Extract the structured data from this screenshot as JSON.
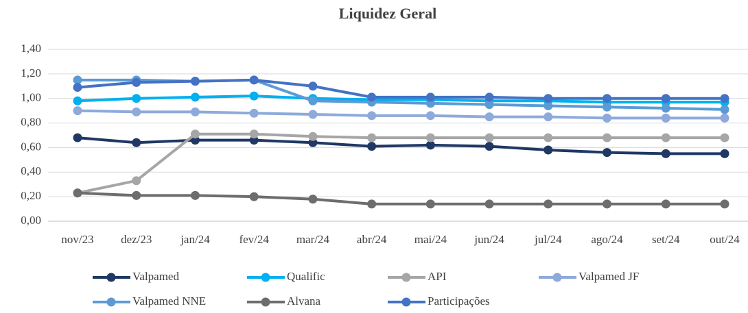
{
  "chart_data": {
    "type": "line",
    "title": "Liquidez Geral",
    "categories": [
      "nov/23",
      "dez/23",
      "jan/24",
      "fev/24",
      "mar/24",
      "abr/24",
      "mai/24",
      "jun/24",
      "jul/24",
      "ago/24",
      "set/24",
      "out/24"
    ],
    "series": [
      {
        "name": "Valpamed",
        "color": "#1f3864",
        "values": [
          0.68,
          0.64,
          0.66,
          0.66,
          0.64,
          0.61,
          0.62,
          0.61,
          0.58,
          0.56,
          0.55,
          0.55
        ]
      },
      {
        "name": "Qualific",
        "color": "#00b0f0",
        "values": [
          0.98,
          1.0,
          1.01,
          1.02,
          1.0,
          0.99,
          0.99,
          0.98,
          0.98,
          0.97,
          0.97,
          0.97
        ]
      },
      {
        "name": "API",
        "color": "#a6a6a6",
        "values": [
          0.23,
          0.33,
          0.71,
          0.71,
          0.69,
          0.68,
          0.68,
          0.68,
          0.68,
          0.68,
          0.68,
          0.68
        ]
      },
      {
        "name": "Valpamed JF",
        "color": "#8eaadb",
        "values": [
          0.9,
          0.89,
          0.89,
          0.88,
          0.87,
          0.86,
          0.86,
          0.85,
          0.85,
          0.84,
          0.84,
          0.84
        ]
      },
      {
        "name": "Valpamed NNE",
        "color": "#5b9bd5",
        "values": [
          1.15,
          1.15,
          1.14,
          1.15,
          0.98,
          0.97,
          0.96,
          0.95,
          0.94,
          0.93,
          0.92,
          0.91
        ]
      },
      {
        "name": "Alvana",
        "color": "#6d6d6d",
        "values": [
          0.23,
          0.21,
          0.21,
          0.2,
          0.18,
          0.14,
          0.14,
          0.14,
          0.14,
          0.14,
          0.14,
          0.14
        ]
      },
      {
        "name": "Participações",
        "color": "#4472c4",
        "values": [
          1.09,
          1.13,
          1.14,
          1.15,
          1.1,
          1.01,
          1.01,
          1.01,
          1.0,
          1.0,
          1.0,
          1.0
        ]
      }
    ],
    "ylim": [
      0,
      1.4
    ],
    "yticks": [
      {
        "value": 0,
        "label": "0,00"
      },
      {
        "value": 0.2,
        "label": "0,20"
      },
      {
        "value": 0.4,
        "label": "0,40"
      },
      {
        "value": 0.6,
        "label": "0,60"
      },
      {
        "value": 0.8,
        "label": "0,80"
      },
      {
        "value": 1.0,
        "label": "1,00"
      },
      {
        "value": 1.2,
        "label": "1,20"
      },
      {
        "value": 1.4,
        "label": "1,40"
      }
    ],
    "grid": true,
    "legend": "bottom"
  }
}
